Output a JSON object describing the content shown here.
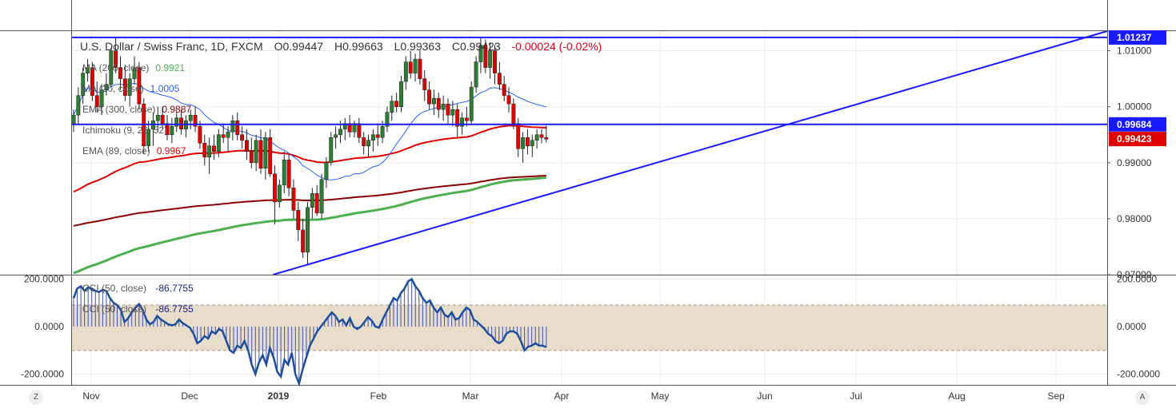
{
  "chart_data": [
    {
      "type": "candlestick",
      "title": "U.S. Dollar / Swiss Franc, 1D, FXCM",
      "ohlc": {
        "open": "O0.99447",
        "high": "H0.99663",
        "low": "L0.99363",
        "close": "C0.99423",
        "change": "-0.00024 (-0.02%)"
      },
      "indicators": [
        {
          "name": "MA (200, close)",
          "value": "0.9921",
          "color": "#4caf50"
        },
        {
          "name": "MA (20, close)",
          "value": "1.0005",
          "color": "#2962ff"
        },
        {
          "name": "EMA (300, close)",
          "value": "0.9887",
          "color": "#8b0000"
        },
        {
          "name": "Ichimoku (9, 26, 52)",
          "value": "",
          "color": "#bdbdbd"
        },
        {
          "name": "EMA (89, close)",
          "value": "0.9967",
          "color": "#e00000"
        }
      ],
      "price_axis": {
        "ticks": [
          "1.01000",
          "1.00000",
          "0.99000",
          "0.98000",
          "0.97000"
        ],
        "ylim": [
          0.97,
          1.0135
        ],
        "badges": [
          {
            "label": "1.01237",
            "value": 1.01237,
            "color": "#1a1aff"
          },
          {
            "label": "0.99684",
            "value": 0.99684,
            "color": "#1a1aff"
          },
          {
            "label": "0.99423",
            "value": 0.99423,
            "color": "#e00000"
          }
        ]
      },
      "x_axis": {
        "ticks": [
          "Nov",
          "Dec",
          "2019",
          "Feb",
          "Mar",
          "Apr",
          "May",
          "Jun",
          "Jul",
          "Aug",
          "Sep"
        ]
      },
      "horizontal_lines": [
        1.01237,
        0.99684
      ],
      "trendline": {
        "from": {
          "date": "2019-01-03",
          "price": 0.9718
        },
        "to": {
          "date": "2019-09-27",
          "price": 1.0135
        }
      },
      "candles": [
        {
          "o": 0.9968,
          "h": 0.9995,
          "l": 0.9955,
          "c": 0.9985
        },
        {
          "o": 0.9985,
          "h": 1.0035,
          "l": 0.997,
          "c": 1.002
        },
        {
          "o": 1.002,
          "h": 1.007,
          "l": 1.0005,
          "c": 1.006
        },
        {
          "o": 1.006,
          "h": 1.0085,
          "l": 1.0045,
          "c": 1.007
        },
        {
          "o": 1.007,
          "h": 1.008,
          "l": 1.001,
          "c": 1.002
        },
        {
          "o": 1.002,
          "h": 1.0045,
          "l": 0.999,
          "c": 1.0
        },
        {
          "o": 1.0,
          "h": 1.004,
          "l": 0.9985,
          "c": 1.003
        },
        {
          "o": 1.003,
          "h": 1.006,
          "l": 1.002,
          "c": 1.004
        },
        {
          "o": 1.004,
          "h": 1.0105,
          "l": 1.0035,
          "c": 1.01
        },
        {
          "o": 1.01,
          "h": 1.0125,
          "l": 1.006,
          "c": 1.007
        },
        {
          "o": 1.007,
          "h": 1.009,
          "l": 1.003,
          "c": 1.005
        },
        {
          "o": 1.005,
          "h": 1.0075,
          "l": 1.001,
          "c": 1.002
        },
        {
          "o": 1.002,
          "h": 1.006,
          "l": 1.0,
          "c": 1.005
        },
        {
          "o": 1.005,
          "h": 1.009,
          "l": 1.004,
          "c": 1.007
        },
        {
          "o": 1.007,
          "h": 1.008,
          "l": 0.9995,
          "c": 1.0005
        },
        {
          "o": 1.0005,
          "h": 1.0015,
          "l": 0.9915,
          "c": 0.993
        },
        {
          "o": 0.993,
          "h": 0.9975,
          "l": 0.992,
          "c": 0.996
        },
        {
          "o": 0.996,
          "h": 0.999,
          "l": 0.993,
          "c": 0.9975
        },
        {
          "o": 0.9975,
          "h": 1.0,
          "l": 0.9955,
          "c": 0.9985
        },
        {
          "o": 0.9985,
          "h": 1.0,
          "l": 0.996,
          "c": 0.997
        },
        {
          "o": 0.997,
          "h": 0.9985,
          "l": 0.994,
          "c": 0.995
        },
        {
          "o": 0.995,
          "h": 0.998,
          "l": 0.9935,
          "c": 0.9965
        },
        {
          "o": 0.9965,
          "h": 0.999,
          "l": 0.9955,
          "c": 0.998
        },
        {
          "o": 0.998,
          "h": 0.9995,
          "l": 0.995,
          "c": 0.996
        },
        {
          "o": 0.996,
          "h": 0.9985,
          "l": 0.9945,
          "c": 0.9975
        },
        {
          "o": 0.9975,
          "h": 0.9995,
          "l": 0.996,
          "c": 0.9985
        },
        {
          "o": 0.9985,
          "h": 1.0,
          "l": 0.9955,
          "c": 0.9965
        },
        {
          "o": 0.9965,
          "h": 0.9975,
          "l": 0.9925,
          "c": 0.9935
        },
        {
          "o": 0.9935,
          "h": 0.995,
          "l": 0.9895,
          "c": 0.991
        },
        {
          "o": 0.991,
          "h": 0.9945,
          "l": 0.988,
          "c": 0.993
        },
        {
          "o": 0.993,
          "h": 0.995,
          "l": 0.9905,
          "c": 0.992
        },
        {
          "o": 0.992,
          "h": 0.996,
          "l": 0.991,
          "c": 0.995
        },
        {
          "o": 0.995,
          "h": 0.997,
          "l": 0.9935,
          "c": 0.9945
        },
        {
          "o": 0.9945,
          "h": 0.9965,
          "l": 0.992,
          "c": 0.9955
        },
        {
          "o": 0.9955,
          "h": 0.9985,
          "l": 0.994,
          "c": 0.9975
        },
        {
          "o": 0.9975,
          "h": 0.999,
          "l": 0.994,
          "c": 0.995
        },
        {
          "o": 0.995,
          "h": 0.9965,
          "l": 0.9925,
          "c": 0.994
        },
        {
          "o": 0.994,
          "h": 0.996,
          "l": 0.9905,
          "c": 0.992
        },
        {
          "o": 0.992,
          "h": 0.9945,
          "l": 0.989,
          "c": 0.99
        },
        {
          "o": 0.99,
          "h": 0.995,
          "l": 0.9885,
          "c": 0.994
        },
        {
          "o": 0.994,
          "h": 0.996,
          "l": 0.988,
          "c": 0.989
        },
        {
          "o": 0.989,
          "h": 0.9955,
          "l": 0.987,
          "c": 0.9945
        },
        {
          "o": 0.9945,
          "h": 0.996,
          "l": 0.9875,
          "c": 0.988
        },
        {
          "o": 0.988,
          "h": 0.9895,
          "l": 0.979,
          "c": 0.983
        },
        {
          "o": 0.983,
          "h": 0.987,
          "l": 0.982,
          "c": 0.986
        },
        {
          "o": 0.986,
          "h": 0.992,
          "l": 0.9845,
          "c": 0.9905
        },
        {
          "o": 0.9905,
          "h": 0.9915,
          "l": 0.984,
          "c": 0.9855
        },
        {
          "o": 0.9855,
          "h": 0.987,
          "l": 0.98,
          "c": 0.9815
        },
        {
          "o": 0.9815,
          "h": 0.983,
          "l": 0.976,
          "c": 0.978
        },
        {
          "o": 0.978,
          "h": 0.98,
          "l": 0.973,
          "c": 0.974
        },
        {
          "o": 0.974,
          "h": 0.983,
          "l": 0.9718,
          "c": 0.982
        },
        {
          "o": 0.982,
          "h": 0.9855,
          "l": 0.98,
          "c": 0.9845
        },
        {
          "o": 0.9845,
          "h": 0.986,
          "l": 0.9805,
          "c": 0.981
        },
        {
          "o": 0.981,
          "h": 0.988,
          "l": 0.98,
          "c": 0.987
        },
        {
          "o": 0.987,
          "h": 0.991,
          "l": 0.9855,
          "c": 0.99
        },
        {
          "o": 0.99,
          "h": 0.9955,
          "l": 0.9895,
          "c": 0.9945
        },
        {
          "o": 0.9945,
          "h": 0.9965,
          "l": 0.9925,
          "c": 0.995
        },
        {
          "o": 0.995,
          "h": 0.9975,
          "l": 0.9935,
          "c": 0.996
        },
        {
          "o": 0.996,
          "h": 0.998,
          "l": 0.994,
          "c": 0.997
        },
        {
          "o": 0.997,
          "h": 0.9985,
          "l": 0.9945,
          "c": 0.9955
        },
        {
          "o": 0.9955,
          "h": 0.9975,
          "l": 0.9945,
          "c": 0.997
        },
        {
          "o": 0.997,
          "h": 0.998,
          "l": 0.9935,
          "c": 0.9945
        },
        {
          "o": 0.9945,
          "h": 0.9955,
          "l": 0.9915,
          "c": 0.993
        },
        {
          "o": 0.993,
          "h": 0.995,
          "l": 0.991,
          "c": 0.994
        },
        {
          "o": 0.994,
          "h": 0.996,
          "l": 0.992,
          "c": 0.995
        },
        {
          "o": 0.995,
          "h": 0.997,
          "l": 0.993,
          "c": 0.9945
        },
        {
          "o": 0.9945,
          "h": 0.9975,
          "l": 0.9935,
          "c": 0.9965
        },
        {
          "o": 0.9965,
          "h": 1.0,
          "l": 0.9955,
          "c": 0.999
        },
        {
          "o": 0.999,
          "h": 1.002,
          "l": 0.9975,
          "c": 1.001
        },
        {
          "o": 1.001,
          "h": 1.0025,
          "l": 0.999,
          "c": 1.0
        },
        {
          "o": 1.0,
          "h": 1.0055,
          "l": 0.999,
          "c": 1.0045
        },
        {
          "o": 1.0045,
          "h": 1.009,
          "l": 1.003,
          "c": 1.008
        },
        {
          "o": 1.008,
          "h": 1.01,
          "l": 1.005,
          "c": 1.006
        },
        {
          "o": 1.006,
          "h": 1.0095,
          "l": 1.0045,
          "c": 1.0085
        },
        {
          "o": 1.0085,
          "h": 1.01,
          "l": 1.004,
          "c": 1.005
        },
        {
          "o": 1.005,
          "h": 1.0065,
          "l": 1.001,
          "c": 1.003
        },
        {
          "o": 1.003,
          "h": 1.0045,
          "l": 0.9995,
          "c": 1.0005
        },
        {
          "o": 1.0005,
          "h": 1.003,
          "l": 0.9985,
          "c": 1.0015
        },
        {
          "o": 1.0015,
          "h": 1.0025,
          "l": 0.998,
          "c": 0.9995
        },
        {
          "o": 0.9995,
          "h": 1.002,
          "l": 0.9975,
          "c": 1.0005
        },
        {
          "o": 1.0005,
          "h": 1.0015,
          "l": 0.997,
          "c": 0.9985
        },
        {
          "o": 0.9985,
          "h": 1.001,
          "l": 0.9965,
          "c": 0.9995
        },
        {
          "o": 0.9995,
          "h": 1.0005,
          "l": 0.9945,
          "c": 0.9965
        },
        {
          "o": 0.9965,
          "h": 0.999,
          "l": 0.995,
          "c": 0.998
        },
        {
          "o": 0.998,
          "h": 1.0,
          "l": 0.9965,
          "c": 0.9975
        },
        {
          "o": 0.9975,
          "h": 1.0045,
          "l": 0.997,
          "c": 1.0035
        },
        {
          "o": 1.0035,
          "h": 1.009,
          "l": 1.0025,
          "c": 1.008
        },
        {
          "o": 1.008,
          "h": 1.0124,
          "l": 1.006,
          "c": 1.011
        },
        {
          "o": 1.011,
          "h": 1.012,
          "l": 1.006,
          "c": 1.007
        },
        {
          "o": 1.007,
          "h": 1.0115,
          "l": 1.005,
          "c": 1.01
        },
        {
          "o": 1.01,
          "h": 1.011,
          "l": 1.004,
          "c": 1.006
        },
        {
          "o": 1.006,
          "h": 1.008,
          "l": 1.003,
          "c": 1.004
        },
        {
          "o": 1.004,
          "h": 1.0055,
          "l": 1.001,
          "c": 1.002
        },
        {
          "o": 1.002,
          "h": 1.0035,
          "l": 0.999,
          "c": 1.0005
        },
        {
          "o": 1.0005,
          "h": 1.0015,
          "l": 0.996,
          "c": 0.997
        },
        {
          "o": 0.997,
          "h": 0.998,
          "l": 0.991,
          "c": 0.9925
        },
        {
          "o": 0.9925,
          "h": 0.9955,
          "l": 0.99,
          "c": 0.9945
        },
        {
          "o": 0.9945,
          "h": 0.996,
          "l": 0.9915,
          "c": 0.993
        },
        {
          "o": 0.993,
          "h": 0.995,
          "l": 0.991,
          "c": 0.994
        },
        {
          "o": 0.994,
          "h": 0.996,
          "l": 0.9925,
          "c": 0.995
        },
        {
          "o": 0.995,
          "h": 0.996,
          "l": 0.9935,
          "c": 0.9945
        },
        {
          "o": 0.9945,
          "h": 0.9966,
          "l": 0.9936,
          "c": 0.9942
        }
      ]
    },
    {
      "type": "line",
      "title": "CCI (50, close)",
      "value": "-86.7755",
      "title2": "CCI (50, close)",
      "value2": "-86.7755",
      "y_ticks": [
        "200.0000",
        "0.0000",
        "-200.0000"
      ],
      "ylim": [
        -245,
        215
      ],
      "band": [
        -100,
        100
      ],
      "values": [
        120,
        160,
        170,
        150,
        165,
        160,
        150,
        145,
        155,
        150,
        120,
        100,
        90,
        70,
        20,
        35,
        60,
        80,
        95,
        70,
        30,
        10,
        20,
        45,
        30,
        20,
        10,
        5,
        10,
        30,
        15,
        5,
        -5,
        -30,
        -70,
        -60,
        -40,
        -50,
        -20,
        -30,
        -10,
        -20,
        -60,
        -100,
        -110,
        -80,
        -90,
        -60,
        -100,
        -160,
        -200,
        -150,
        -120,
        -160,
        -90,
        -130,
        -190,
        -210,
        -140,
        -160,
        -110,
        -200,
        -240,
        -180,
        -130,
        -80,
        -50,
        -20,
        0,
        20,
        40,
        60,
        45,
        20,
        30,
        5,
        35,
        0,
        -10,
        0,
        20,
        40,
        25,
        0,
        -5,
        30,
        60,
        90,
        120,
        110,
        140,
        160,
        190,
        200,
        170,
        150,
        120,
        100,
        110,
        80,
        60,
        80,
        50,
        40,
        60,
        30,
        35,
        60,
        80,
        70,
        30,
        20,
        5,
        -10,
        -30,
        -40,
        -60,
        -70,
        -60,
        -30,
        -20,
        -20,
        -30,
        -60,
        -100,
        -85,
        -80,
        -70,
        -80,
        -80,
        -87
      ]
    }
  ]
}
